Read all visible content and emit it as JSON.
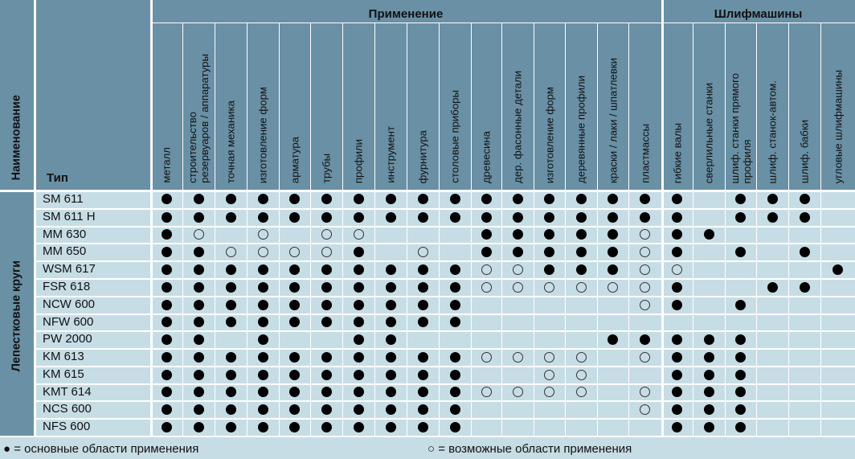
{
  "header": {
    "naimenovanie": "Наименование",
    "tip": "Тип",
    "group_primenenie": "Применение",
    "group_shlif": "Шлифмашины"
  },
  "columns": [
    "металл",
    "строительство\nрезервуаров / аппаратуры",
    "точная механика",
    "изготовление форм",
    "арматура",
    "трубы",
    "профили",
    "инструмент",
    "фурнитура",
    "столовые приборы",
    "древесина",
    "дер. фасонные детали",
    "изготовление форм",
    "деревянные профили",
    "краски / лаки / шпатлевки",
    "пластмассы",
    "гибкие валы",
    "сверлильные станки",
    "шлиф. станки прямого\nпрофиля",
    "шлиф. станок-автом.",
    "шлиф. бабки",
    "угловые шлифмашины"
  ],
  "group_label": "Лепестковые круги",
  "rows": [
    {
      "name": "SM 611",
      "marks": "FFFFFFFFFFFFFFFFF-FFF-"
    },
    {
      "name": "SM 611 H",
      "marks": "FFFFFFFFFFFFFFFFF-FFF-"
    },
    {
      "name": "MM 630",
      "marks": "FO-O-OO---FFFFFOFF----"
    },
    {
      "name": "MM 650",
      "marks": "FFOOOOF-O-FFFFFOF-F-F-"
    },
    {
      "name": "WSM 617",
      "marks": "FFFFFFFFFFOOFFFOO----F"
    },
    {
      "name": "FSR 618",
      "marks": "FFFFFFFFFFOOOOOOF--FF-"
    },
    {
      "name": "NCW 600",
      "marks": "FFFFFFFFFF-----OF-F---"
    },
    {
      "name": "NFW 600",
      "marks": "FFFFFFFFFF------------"
    },
    {
      "name": "PW 2000",
      "marks": "FF-F--FF------FFFFF---"
    },
    {
      "name": "KM 613",
      "marks": "FFFFFFFFFFOOOO-OFFF---"
    },
    {
      "name": "KM 615",
      "marks": "FFFFFFFFFF--OO--FFF---"
    },
    {
      "name": "KMT 614",
      "marks": "FFFFFFFFFFOOOO-OFFF---"
    },
    {
      "name": "NCS 600",
      "marks": "FFFFFFFFFF-----OFFF---"
    },
    {
      "name": "NFS 600",
      "marks": "FFFFFFFFFF------FFF---"
    }
  ],
  "legend": {
    "full_symbol": "●",
    "full_text": " = основные области применения",
    "open_symbol": "○",
    "open_text": " = возможные области применения"
  },
  "colors": {
    "header_bg": "#6990a5",
    "body_bg": "#c7dde5",
    "grid_line": "#ffffff"
  }
}
